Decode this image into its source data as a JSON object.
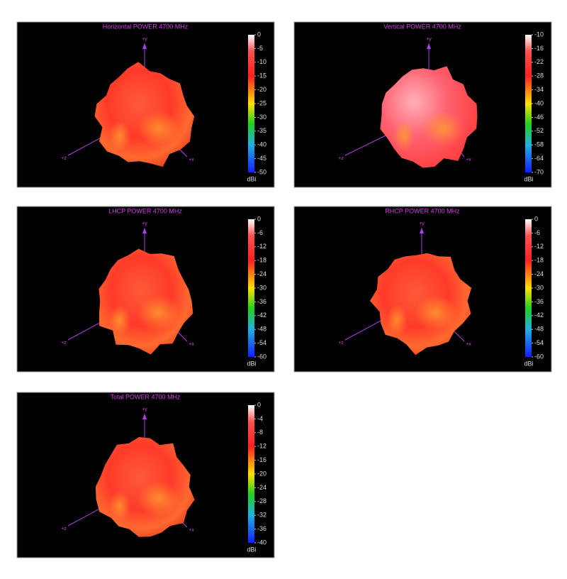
{
  "chart_data": [
    {
      "type": "3d-pattern",
      "title": "Horizontal POWER 4700  MHz",
      "colorbar_label": "dBi",
      "clim": [
        -50,
        0
      ],
      "cticks": [
        0,
        -5,
        -10,
        -15,
        -20,
        -25,
        -30,
        -35,
        -40,
        -45,
        -50
      ],
      "axis_labels": [
        "+y",
        "+z",
        "+x"
      ]
    },
    {
      "type": "3d-pattern",
      "title": "Vertical POWER 4700  MHz",
      "colorbar_label": "dBi",
      "clim": [
        -70,
        -10
      ],
      "cticks": [
        -10,
        -16,
        -22,
        -28,
        -34,
        -40,
        -46,
        -52,
        -58,
        -64,
        -70
      ],
      "axis_labels": [
        "+y",
        "+z",
        "+x"
      ]
    },
    {
      "type": "3d-pattern",
      "title": "LHCP POWER 4700  MHz",
      "colorbar_label": "dBi",
      "clim": [
        -60,
        0
      ],
      "cticks": [
        0,
        -6,
        -12,
        -18,
        -24,
        -30,
        -36,
        -42,
        -48,
        -54,
        -60
      ],
      "axis_labels": [
        "+y",
        "+z",
        "+x"
      ]
    },
    {
      "type": "3d-pattern",
      "title": "RHCP POWER 4700  MHz",
      "colorbar_label": "dBi",
      "clim": [
        -60,
        0
      ],
      "cticks": [
        0,
        -6,
        -12,
        -18,
        -24,
        -30,
        -36,
        -42,
        -48,
        -54,
        -60
      ],
      "axis_labels": [
        "+y",
        "+z",
        "+x"
      ]
    },
    {
      "type": "3d-pattern",
      "title": "Total POWER 4700  MHz",
      "colorbar_label": "dBi",
      "clim": [
        -40,
        0
      ],
      "cticks": [
        0,
        -4,
        -8,
        -12,
        -16,
        -20,
        -24,
        -28,
        -32,
        -36,
        -40
      ],
      "axis_labels": [
        "+y",
        "+z",
        "+x"
      ]
    }
  ]
}
